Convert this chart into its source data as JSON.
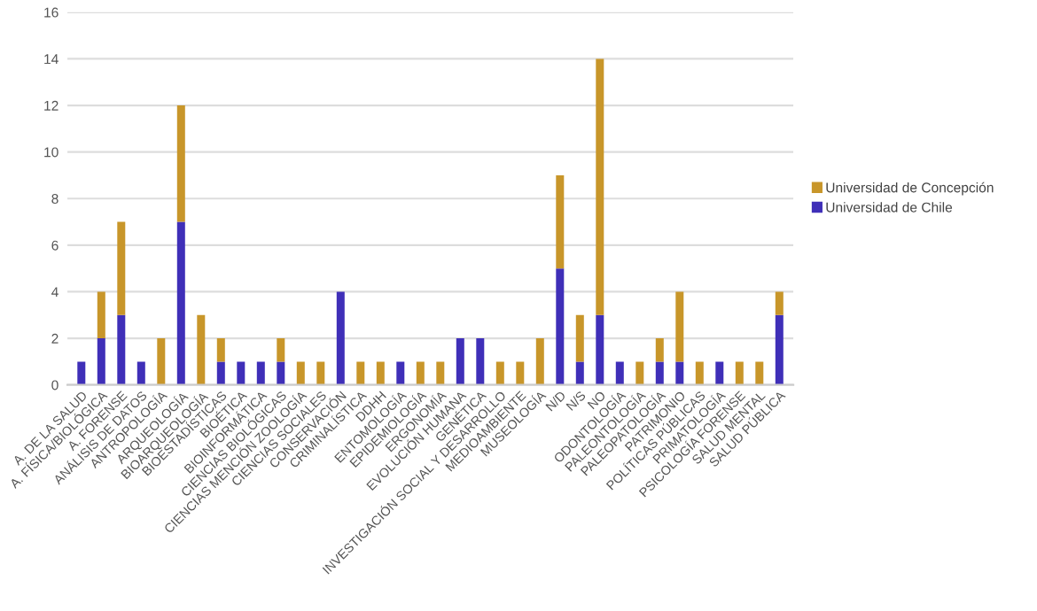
{
  "chart_data": {
    "type": "bar",
    "stacked": true,
    "categories": [
      "A. DE LA SALUD",
      "A. FÍSICA/BIOLÓGICA",
      "A. FORENSE",
      "ANÁLISIS DE DATOS",
      "ANTROPOLOGÍA",
      "ARQUEOLOGÍA",
      "BIOARQUEOLOGÍA",
      "BIOESTADÍSTICAS",
      "BIOÉTICA",
      "BIOINFORMÁTICA",
      "CIENCIAS BIOLÓGICAS",
      "CIENCIAS MENCIÓN ZOOLOGÍA",
      "CIENCIAS SOCIALES",
      "CONSERVACIÓN",
      "CRIMINALÍSTICA",
      "DDHH",
      "ENTOMOLOGÍA",
      "EPIDEMIOLOGÍA",
      "ERGONOMÍA",
      "EVOLUCIÓN HUMANA",
      "GENÉTICA",
      "INVESTIGACIÓN SOCIAL Y DESARROLLO",
      "MEDIOAMBIENTE",
      "MUSEOLOGÍA",
      "N/D",
      "N/S",
      "NO",
      "ODONTOLOGÍA",
      "PALEONTOLOGÍA",
      "PALEOPATOLOGÍA",
      "PATRIMONIO",
      "POLÍTICAS PÚBLICAS",
      "PRIMATOLOGÍA",
      "PSICOLOGÍA FORENSE",
      "SALUD MENTAL",
      "SALUD PÚBLICA"
    ],
    "series": [
      {
        "name": "Universidad de Chile",
        "color": "#3f2fb8",
        "values": [
          1,
          2,
          3,
          1,
          0,
          7,
          0,
          1,
          1,
          1,
          1,
          0,
          0,
          4,
          0,
          0,
          1,
          0,
          0,
          2,
          2,
          0,
          0,
          0,
          5,
          1,
          3,
          1,
          0,
          1,
          1,
          0,
          1,
          0,
          0,
          3
        ]
      },
      {
        "name": "Universidad de Concepción",
        "color": "#c8962a",
        "values": [
          0,
          2,
          4,
          0,
          2,
          5,
          3,
          1,
          0,
          0,
          1,
          1,
          1,
          0,
          1,
          1,
          0,
          1,
          1,
          0,
          0,
          1,
          1,
          2,
          4,
          2,
          11,
          0,
          1,
          1,
          3,
          1,
          0,
          1,
          1,
          1
        ]
      }
    ],
    "ylim": [
      0,
      16
    ],
    "yticks": [
      0,
      2,
      4,
      6,
      8,
      10,
      12,
      14,
      16
    ],
    "grid": "y",
    "legend": "right"
  }
}
